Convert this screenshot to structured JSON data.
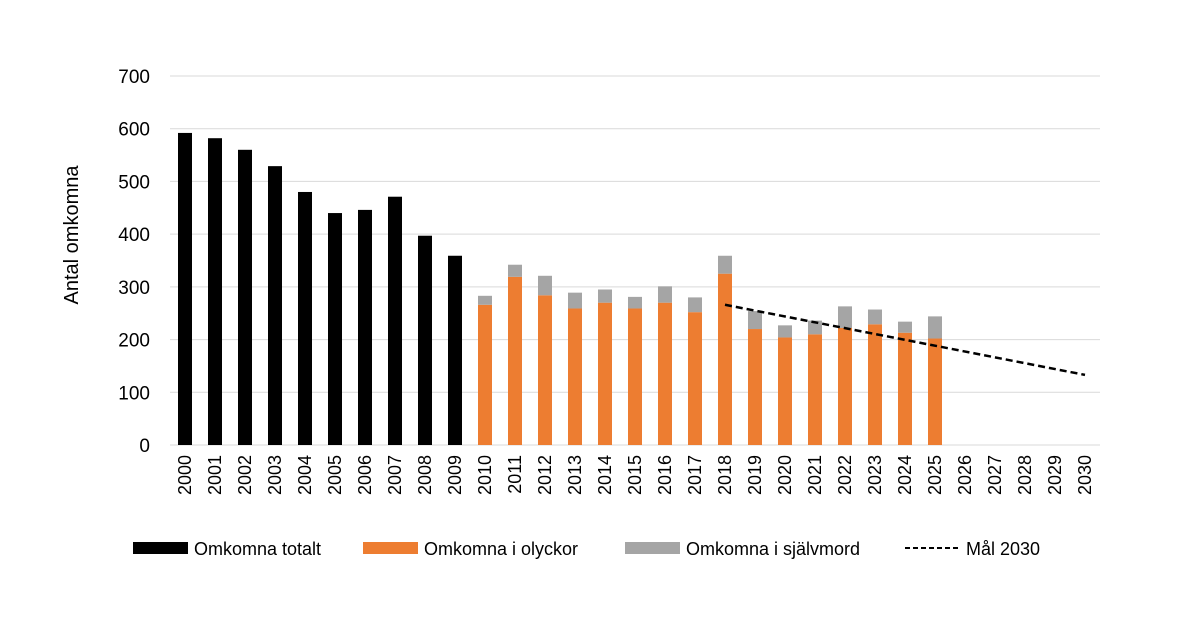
{
  "chart_data": {
    "type": "bar",
    "ylabel": "Antal omkomna",
    "ylim": [
      0,
      700
    ],
    "yticks": [
      0,
      100,
      200,
      300,
      400,
      500,
      600,
      700
    ],
    "grid": true,
    "legend_position": "bottom",
    "categories": [
      "2000",
      "2001",
      "2002",
      "2003",
      "2004",
      "2005",
      "2006",
      "2007",
      "2008",
      "2009",
      "2010",
      "2011",
      "2012",
      "2013",
      "2014",
      "2015",
      "2016",
      "2017",
      "2018",
      "2019",
      "2020",
      "2021",
      "2022",
      "2023",
      "2024",
      "2025",
      "2026",
      "2027",
      "2028",
      "2029",
      "2030"
    ],
    "series": [
      {
        "name": "Omkomna totalt",
        "color": "#000000",
        "values": [
          592,
          582,
          560,
          529,
          480,
          440,
          446,
          471,
          397,
          359,
          null,
          null,
          null,
          null,
          null,
          null,
          null,
          null,
          null,
          null,
          null,
          null,
          null,
          null,
          null,
          null,
          null,
          null,
          null,
          null,
          null
        ]
      },
      {
        "name": "Omkomna i olyckor",
        "color": "#ED7D31",
        "values": [
          null,
          null,
          null,
          null,
          null,
          null,
          null,
          null,
          null,
          null,
          266,
          319,
          284,
          259,
          270,
          259,
          270,
          252,
          325,
          220,
          204,
          210,
          222,
          229,
          213,
          202,
          null,
          null,
          null,
          null,
          null
        ]
      },
      {
        "name": "Omkomna i självmord",
        "color": "#A5A5A5",
        "stacked_on": "Omkomna i olyckor",
        "values": [
          null,
          null,
          null,
          null,
          null,
          null,
          null,
          null,
          null,
          null,
          17,
          23,
          37,
          30,
          25,
          22,
          31,
          28,
          34,
          34,
          23,
          26,
          41,
          28,
          21,
          42,
          null,
          null,
          null,
          null,
          null
        ]
      },
      {
        "name": "Mål 2030",
        "type": "line",
        "style": "dashed",
        "color": "#000000",
        "points": [
          [
            "2018",
            266
          ],
          [
            "2030",
            133
          ]
        ]
      }
    ]
  }
}
